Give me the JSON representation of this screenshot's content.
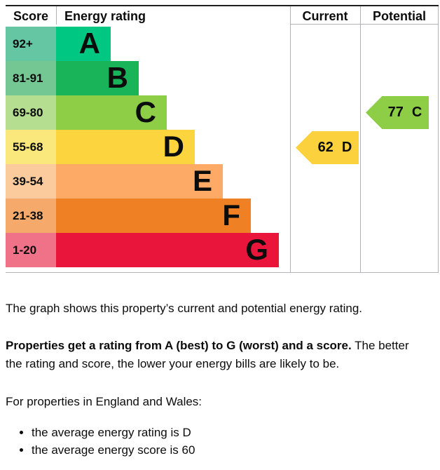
{
  "chart_data": {
    "type": "bar",
    "columns": [
      "Score",
      "Energy rating",
      "Current",
      "Potential"
    ],
    "bands": [
      {
        "range": "92+",
        "letter": "A",
        "color": "#00c781",
        "tint": "#65c6a3",
        "bar_length": 78
      },
      {
        "range": "81-91",
        "letter": "B",
        "color": "#19b459",
        "tint": "#74c793",
        "bar_length": 118
      },
      {
        "range": "69-80",
        "letter": "C",
        "color": "#8dce46",
        "tint": "#b5de90",
        "bar_length": 158
      },
      {
        "range": "55-68",
        "letter": "D",
        "color": "#fcd53e",
        "tint": "#fae87c",
        "bar_length": 198
      },
      {
        "range": "39-54",
        "letter": "E",
        "color": "#fcaa65",
        "tint": "#fbca9d",
        "bar_length": 238
      },
      {
        "range": "21-38",
        "letter": "F",
        "color": "#ef8023",
        "tint": "#f5aa6c",
        "bar_length": 278
      },
      {
        "range": "1-20",
        "letter": "G",
        "color": "#e9153b",
        "tint": "#ef7288",
        "bar_length": 318
      }
    ],
    "current": {
      "score": 62,
      "band": "D",
      "arrow_color": "#fbd23e",
      "aligned_band_row": "D"
    },
    "potential": {
      "score": 77,
      "band": "C",
      "arrow_color": "#8dce46",
      "aligned_band_row": "C"
    }
  },
  "text": {
    "intro": "The graph shows this property’s current and potential energy rating.",
    "rating_sentence_bold": "Properties get a rating from A (best) to G (worst) and a score.",
    "rating_sentence_line1": " The better",
    "rating_sentence_line2": "the rating and score, the lower your energy bills are likely to be.",
    "region_heading": "For properties in England and Wales:",
    "bullets": [
      "the average energy rating is D",
      "the average energy score is 60"
    ]
  }
}
